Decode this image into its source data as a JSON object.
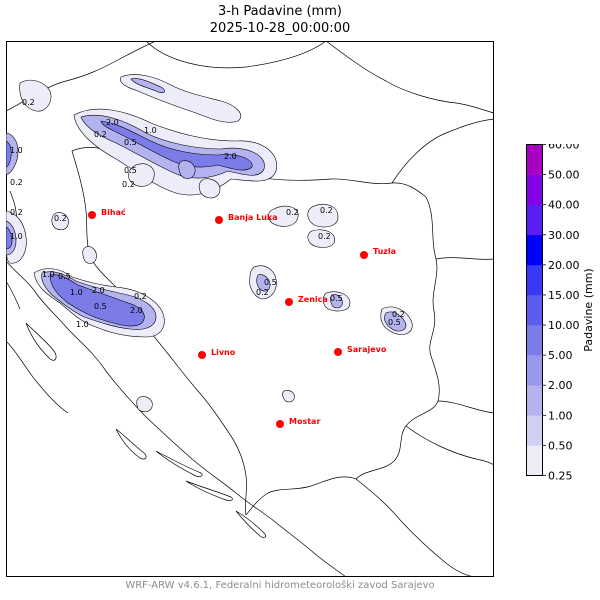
{
  "header": {
    "title": "3-h Padavine (mm)",
    "datetime": "2025-10-28_00:00:00"
  },
  "cities": [
    {
      "name": "Bihać",
      "id": "bihac"
    },
    {
      "name": "Banja Luka",
      "id": "banja-luka"
    },
    {
      "name": "Tuzla",
      "id": "tuzla"
    },
    {
      "name": "Zenica",
      "id": "zenica"
    },
    {
      "name": "Livno",
      "id": "livno"
    },
    {
      "name": "Sarajevo",
      "id": "sarajevo"
    },
    {
      "name": "Mostar",
      "id": "mostar"
    }
  ],
  "contour_labels": [
    "0.2",
    "0.5",
    "1.0",
    "2.0"
  ],
  "colorbar": {
    "label": "Padavine (mm)",
    "ticks": [
      "0.25",
      "0.50",
      "1.00",
      "2.00",
      "5.00",
      "10.00",
      "15.00",
      "20.00",
      "30.00",
      "40.00",
      "50.00",
      "60.00"
    ],
    "colors": [
      "#ededfa",
      "#d0d0f5",
      "#b3b3f0",
      "#9898ec",
      "#7c7ce8",
      "#5c5cee",
      "#3838f6",
      "#0000ff",
      "#5a1ef2",
      "#8400e6",
      "#a800c2"
    ]
  },
  "footer": "WRF-ARW v4.6.1, Federalni hidrometeorološki zavod Sarajevo"
}
